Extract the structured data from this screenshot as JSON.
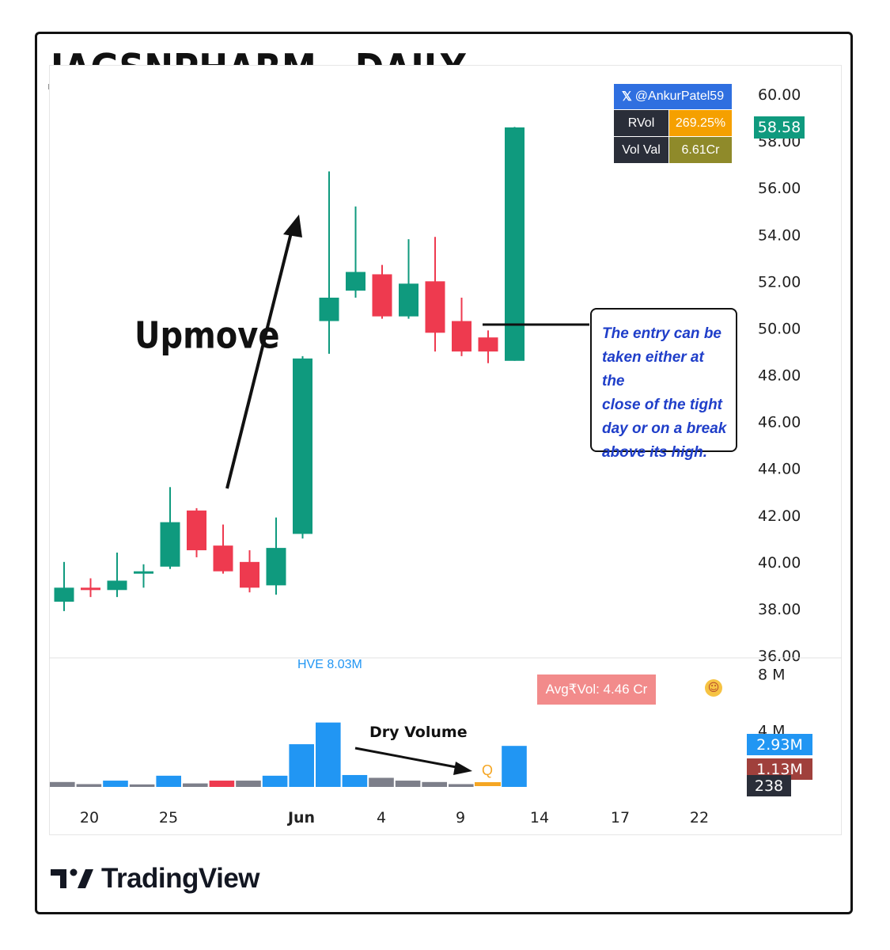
{
  "title": "JAGSNPHARM - DAILY",
  "watermark_handle": "@AnkurPatel59",
  "info_table": {
    "rvol_label": "RVol",
    "rvol_value": "269.25%",
    "volval_label": "Vol Val",
    "volval_value": "6.61Cr"
  },
  "annotations": {
    "upmove": "Upmove",
    "dry_volume": "Dry Volume",
    "hve": "HVE 8.03M",
    "q_marker": "Q",
    "avg_vol": "Avg₹Vol: 4.46 Cr",
    "note_lines": [
      "The entry can be",
      "taken either at the",
      "close of the tight",
      "day or on a break",
      "above its high."
    ]
  },
  "price_tag": "58.58",
  "volume_tags": [
    "2.93M",
    "1.13M",
    "238"
  ],
  "logo_text": "TradingView",
  "colors": {
    "up": "#0f9a7e",
    "down": "#ee3a4f",
    "vol_blue": "#2196f3",
    "vol_gray": "#7d7f8a",
    "vol_red": "#ee3a4f",
    "vol_orange": "#f5a623",
    "note_text": "#1f3ec9"
  },
  "chart_data": [
    {
      "type": "candlestick",
      "title": "JAGSNPHARM - DAILY",
      "y_ticks": [
        "60.00",
        "58.00",
        "56.00",
        "54.00",
        "52.00",
        "50.00",
        "48.00",
        "46.00",
        "44.00",
        "42.00",
        "40.00",
        "38.00",
        "36.00"
      ],
      "ylim": [
        36,
        60
      ],
      "x_ticks": [
        "20",
        "25",
        "Jun",
        "4",
        "9",
        "14",
        "17",
        "22"
      ],
      "candles": [
        {
          "o": 38.3,
          "h": 40.0,
          "l": 37.9,
          "c": 38.9
        },
        {
          "o": 38.9,
          "h": 39.3,
          "l": 38.5,
          "c": 38.8
        },
        {
          "o": 38.8,
          "h": 40.4,
          "l": 38.5,
          "c": 39.2
        },
        {
          "o": 39.5,
          "h": 39.9,
          "l": 38.9,
          "c": 39.6
        },
        {
          "o": 39.8,
          "h": 43.2,
          "l": 39.7,
          "c": 41.7
        },
        {
          "o": 42.2,
          "h": 42.3,
          "l": 40.2,
          "c": 40.5
        },
        {
          "o": 40.7,
          "h": 41.6,
          "l": 39.5,
          "c": 39.6
        },
        {
          "o": 40.0,
          "h": 40.5,
          "l": 38.7,
          "c": 38.9
        },
        {
          "o": 39.0,
          "h": 41.9,
          "l": 38.6,
          "c": 40.6
        },
        {
          "o": 41.2,
          "h": 48.8,
          "l": 41.0,
          "c": 48.7
        },
        {
          "o": 50.3,
          "h": 56.7,
          "l": 48.9,
          "c": 51.3
        },
        {
          "o": 51.6,
          "h": 55.2,
          "l": 51.3,
          "c": 52.4
        },
        {
          "o": 52.3,
          "h": 52.7,
          "l": 50.4,
          "c": 50.5
        },
        {
          "o": 50.5,
          "h": 53.8,
          "l": 50.4,
          "c": 51.9
        },
        {
          "o": 52.0,
          "h": 53.9,
          "l": 49.0,
          "c": 49.8
        },
        {
          "o": 50.3,
          "h": 51.3,
          "l": 48.8,
          "c": 49.0
        },
        {
          "o": 49.6,
          "h": 49.9,
          "l": 48.5,
          "c": 49.0
        },
        {
          "o": 48.6,
          "h": 58.6,
          "l": 48.6,
          "c": 58.58
        }
      ]
    },
    {
      "type": "bar",
      "title": "Volume",
      "y_ticks": [
        "8 M",
        "4 M"
      ],
      "ylim": [
        0,
        8.03
      ],
      "values": [
        0.35,
        0.2,
        0.45,
        0.18,
        0.8,
        0.25,
        0.45,
        0.45,
        0.8,
        3.05,
        4.6,
        0.85,
        0.65,
        0.45,
        0.35,
        0.2,
        0.1,
        2.93
      ],
      "colors": [
        "gray",
        "gray",
        "blue",
        "gray",
        "blue",
        "gray",
        "red",
        "gray",
        "blue",
        "blue",
        "blue",
        "blue",
        "gray",
        "gray",
        "gray",
        "gray",
        "orange",
        "blue"
      ]
    }
  ]
}
